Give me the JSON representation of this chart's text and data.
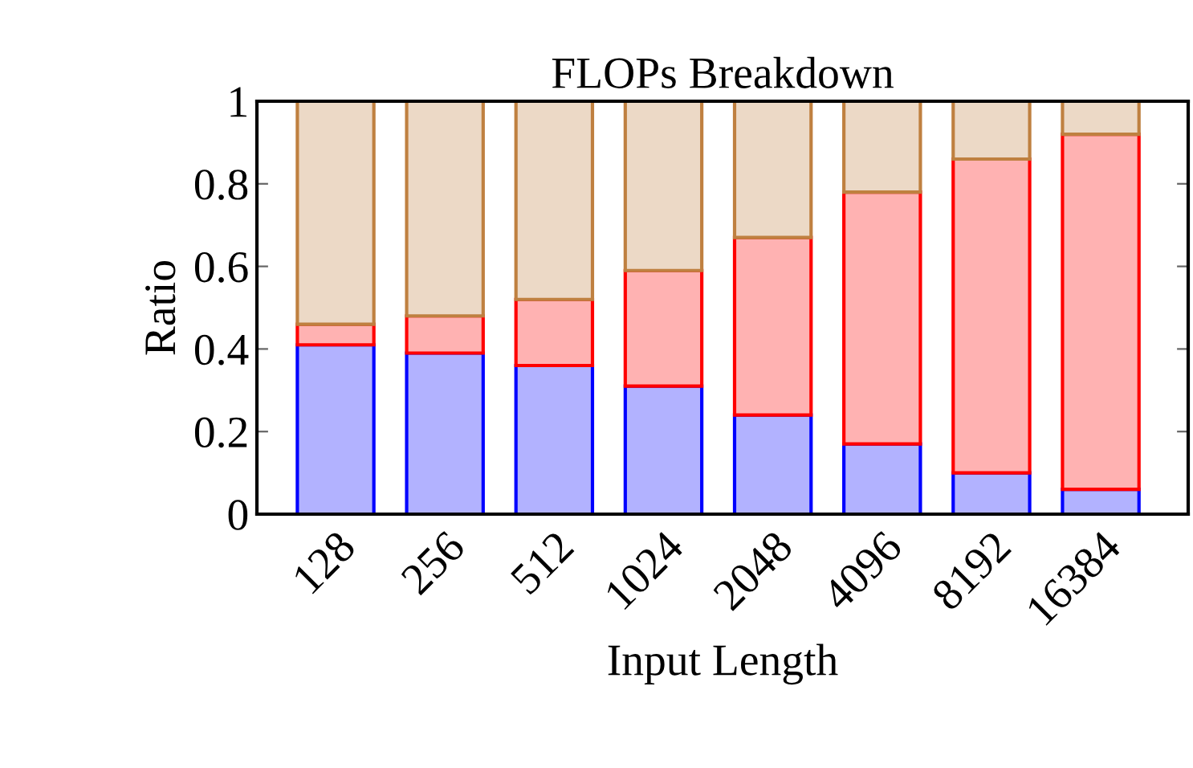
{
  "chart_data": {
    "type": "bar",
    "title": "FLOPs Breakdown",
    "xlabel": "Input Length",
    "ylabel": "Ratio",
    "categories": [
      "128",
      "256",
      "512",
      "1024",
      "2048",
      "4096",
      "8192",
      "16384"
    ],
    "stacked": true,
    "series": [
      {
        "color": "#0000ff",
        "values": [
          0.41,
          0.39,
          0.36,
          0.31,
          0.24,
          0.17,
          0.1,
          0.06
        ]
      },
      {
        "color": "#ff0000",
        "values": [
          0.05,
          0.09,
          0.16,
          0.28,
          0.43,
          0.61,
          0.76,
          0.86
        ]
      },
      {
        "color": "#bf8040",
        "values": [
          0.54,
          0.52,
          0.48,
          0.41,
          0.33,
          0.22,
          0.14,
          0.08
        ]
      }
    ],
    "ylim": [
      0,
      1
    ],
    "yticks": [
      0,
      0.2,
      0.4,
      0.6,
      0.8,
      1
    ]
  }
}
